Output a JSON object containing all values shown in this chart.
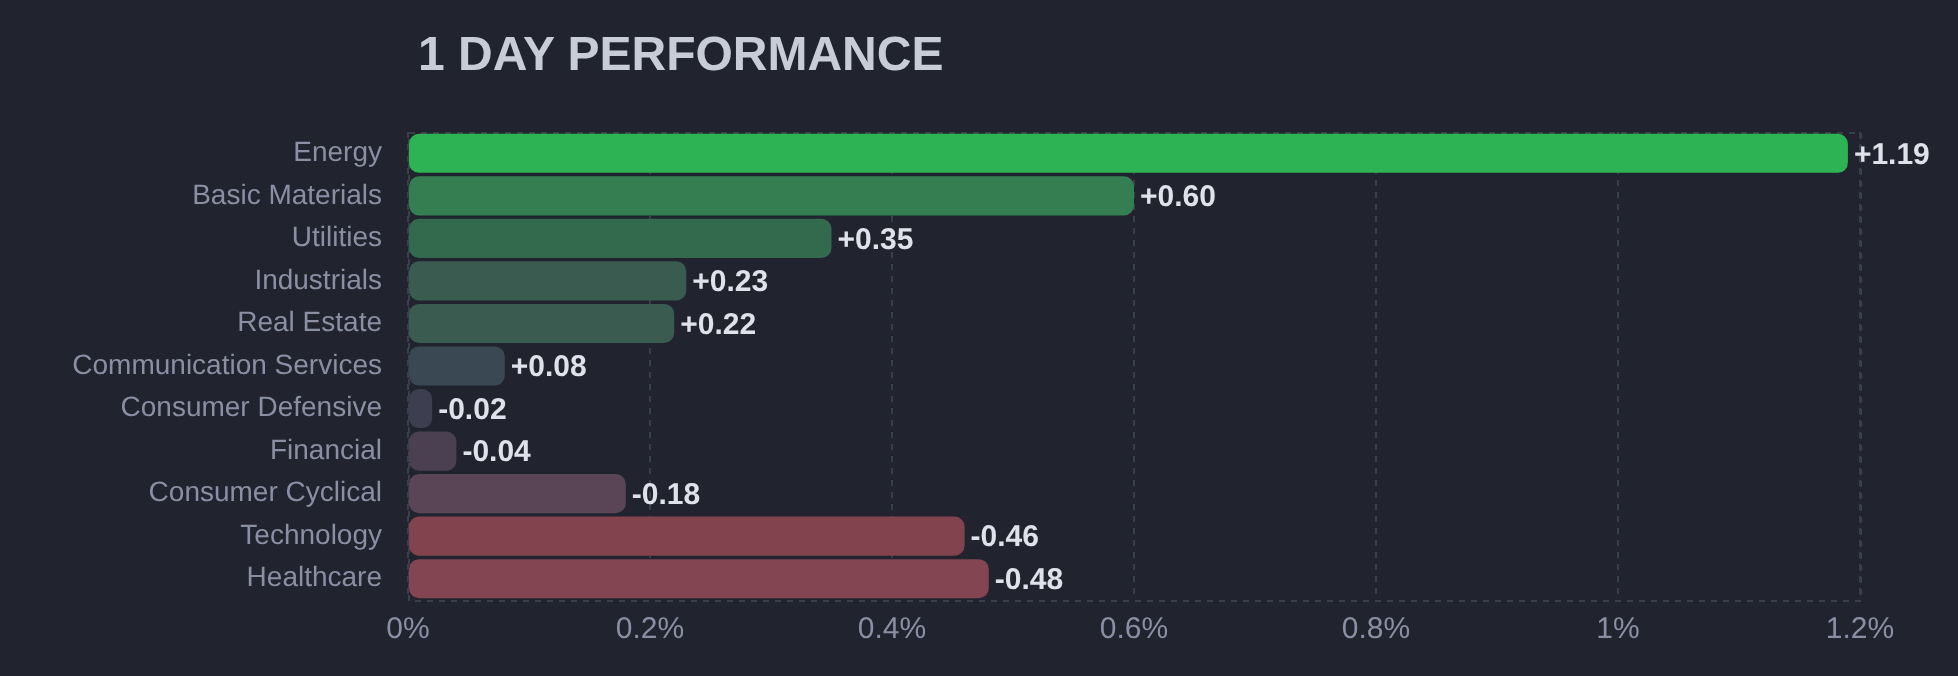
{
  "chart_data": {
    "type": "bar",
    "orientation": "horizontal",
    "title": "1 DAY PERFORMANCE",
    "categories": [
      "Energy",
      "Basic Materials",
      "Utilities",
      "Industrials",
      "Real Estate",
      "Communication Services",
      "Consumer Defensive",
      "Financial",
      "Consumer Cyclical",
      "Technology",
      "Healthcare"
    ],
    "values": [
      1.19,
      0.6,
      0.35,
      0.23,
      0.22,
      0.08,
      -0.02,
      -0.04,
      -0.18,
      -0.46,
      -0.48
    ],
    "base": [
      0,
      0,
      0,
      0,
      0,
      0,
      0.02,
      0.04,
      0.18,
      0.46,
      0.48
    ],
    "value_labels": [
      "+1.19",
      "+0.60",
      "+0.35",
      "+0.23",
      "+0.22",
      "+0.08",
      "-0.02",
      "-0.04",
      "-0.18",
      "-0.46",
      "-0.48"
    ],
    "colors": [
      "#2db353",
      "#347e51",
      "#336a4e",
      "#395b50",
      "#395b50",
      "#3a4853",
      "#3d3f50",
      "#4a4052",
      "#5a4556",
      "#82434e",
      "#834551"
    ],
    "xlim": [
      0,
      1.2
    ],
    "xticks": [
      {
        "value": 0,
        "label": "0%"
      },
      {
        "value": 0.2,
        "label": "0.2%"
      },
      {
        "value": 0.4,
        "label": "0.4%"
      },
      {
        "value": 0.6,
        "label": "0.6%"
      },
      {
        "value": 0.8,
        "label": "0.8%"
      },
      {
        "value": 1,
        "label": "1%"
      },
      {
        "value": 1.2,
        "label": "1.2%"
      }
    ],
    "grid": "x"
  }
}
